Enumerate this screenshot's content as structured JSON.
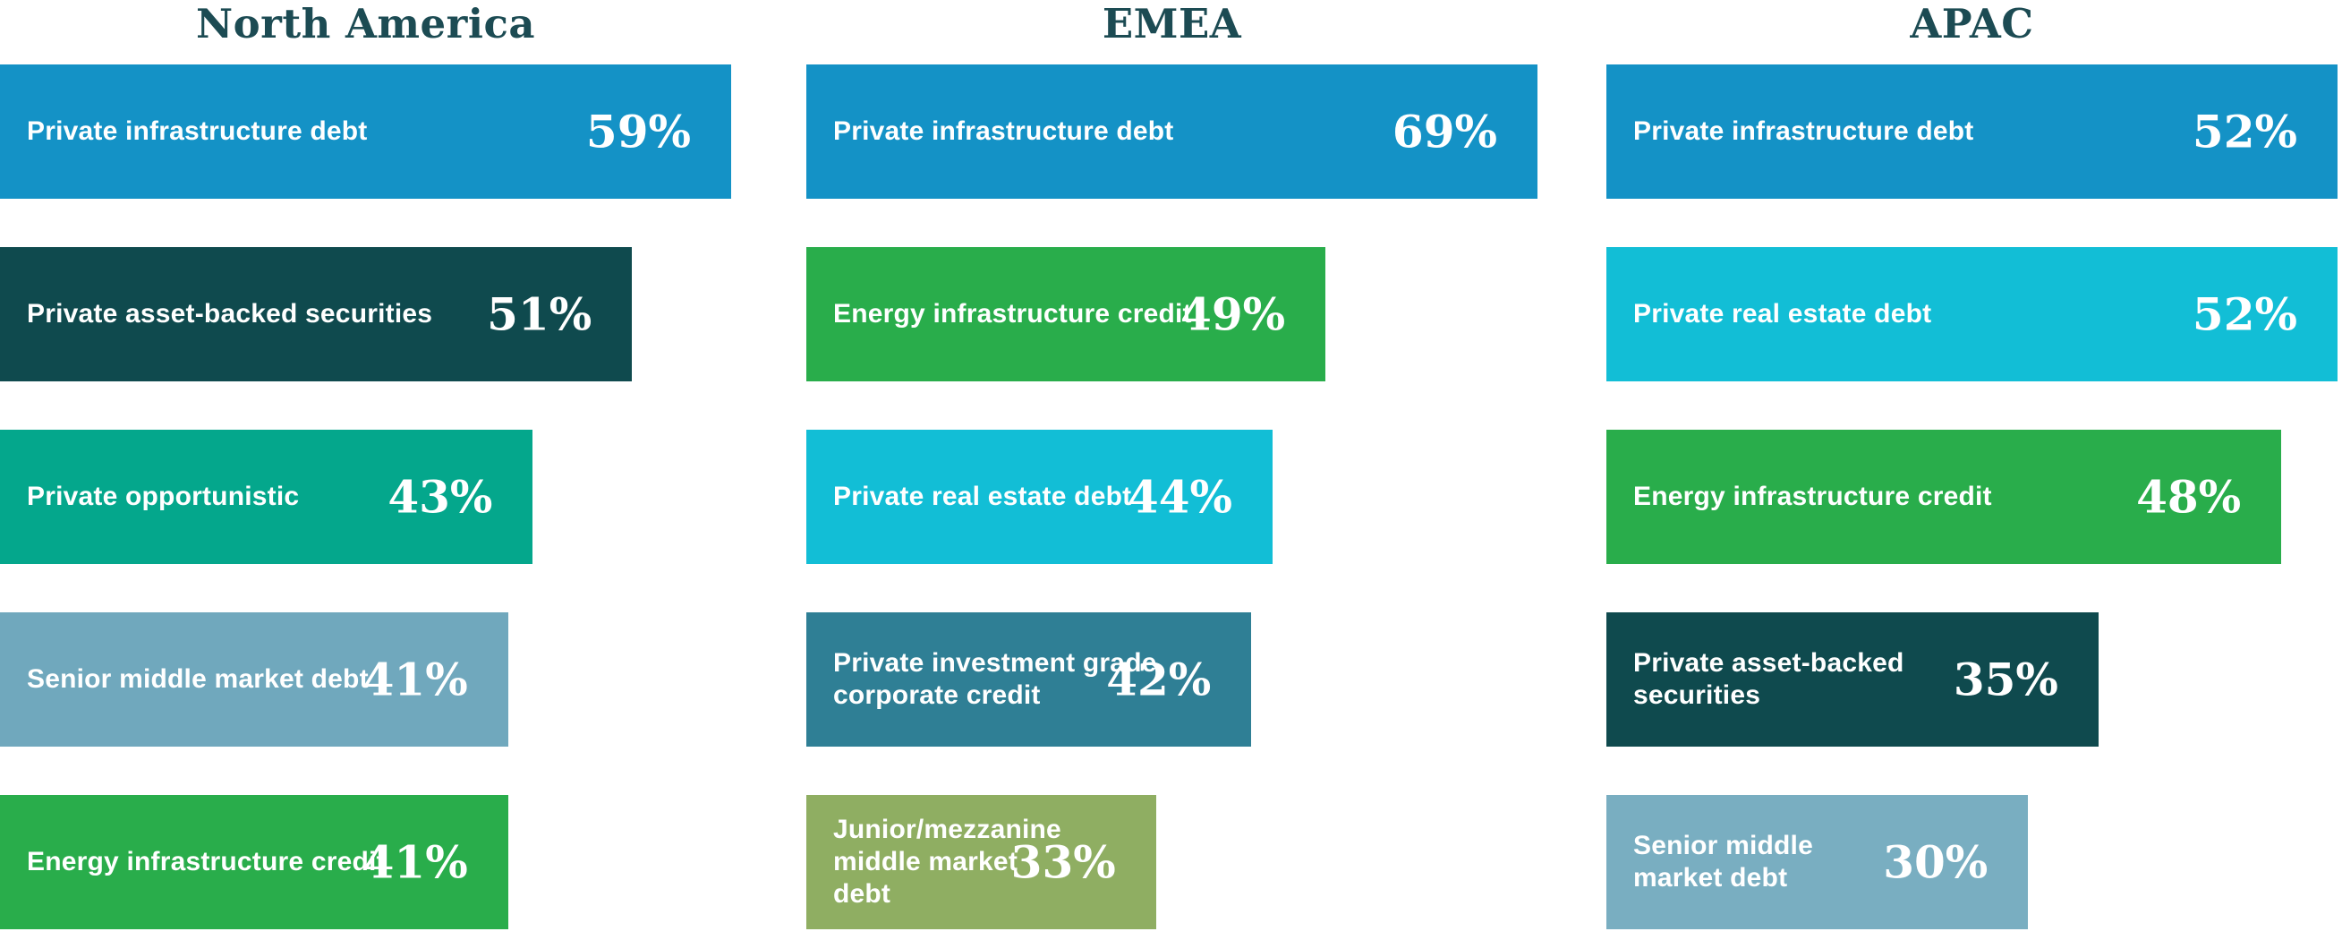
{
  "chart_data": {
    "type": "bar",
    "orientation": "horizontal",
    "unit": "%",
    "value_label_position": "inside-right",
    "bar_scaling": "each column scaled so its maximum value spans full column width",
    "title_color": "#1c4b53",
    "label_text_color": "#ffffff",
    "groups": [
      {
        "region": "North America",
        "bars": [
          {
            "label": "Private infrastructure debt",
            "value": 59,
            "pct": "59%",
            "color": "#1492c6"
          },
          {
            "label": "Private asset-backed securities",
            "value": 51,
            "pct": "51%",
            "color": "#0f4a4e"
          },
          {
            "label": "Private opportunistic",
            "value": 43,
            "pct": "43%",
            "color": "#04a78c"
          },
          {
            "label": "Senior middle market debt",
            "value": 41,
            "pct": "41%",
            "color": "#70a8bd"
          },
          {
            "label": "Energy infrastructure credit",
            "value": 41,
            "pct": "41%",
            "color": "#29ad4b"
          }
        ]
      },
      {
        "region": "EMEA",
        "bars": [
          {
            "label": "Private infrastructure debt",
            "value": 69,
            "pct": "69%",
            "color": "#1492c6"
          },
          {
            "label": "Energy infrastructure credit",
            "value": 49,
            "pct": "49%",
            "color": "#29ad4b"
          },
          {
            "label": "Private real estate debt",
            "value": 44,
            "pct": "44%",
            "color": "#12bed6"
          },
          {
            "label": "Private investment grade corporate credit",
            "value": 42,
            "pct": "42%",
            "color": "#2f7f95"
          },
          {
            "label": "Junior/mezzanine middle market debt",
            "value": 33,
            "pct": "33%",
            "color": "#8fae62"
          }
        ]
      },
      {
        "region": "APAC",
        "bars": [
          {
            "label": "Private infrastructure debt",
            "value": 52,
            "pct": "52%",
            "color": "#1492c6"
          },
          {
            "label": "Private real estate debt",
            "value": 52,
            "pct": "52%",
            "color": "#12bed6"
          },
          {
            "label": "Energy infrastructure credit",
            "value": 48,
            "pct": "48%",
            "color": "#29ad4b"
          },
          {
            "label": "Private asset-backed securities",
            "value": 35,
            "pct": "35%",
            "color": "#0f4a4e"
          },
          {
            "label": "Senior middle market debt",
            "value": 30,
            "pct": "30%",
            "color": "#79aec1"
          }
        ]
      }
    ]
  }
}
